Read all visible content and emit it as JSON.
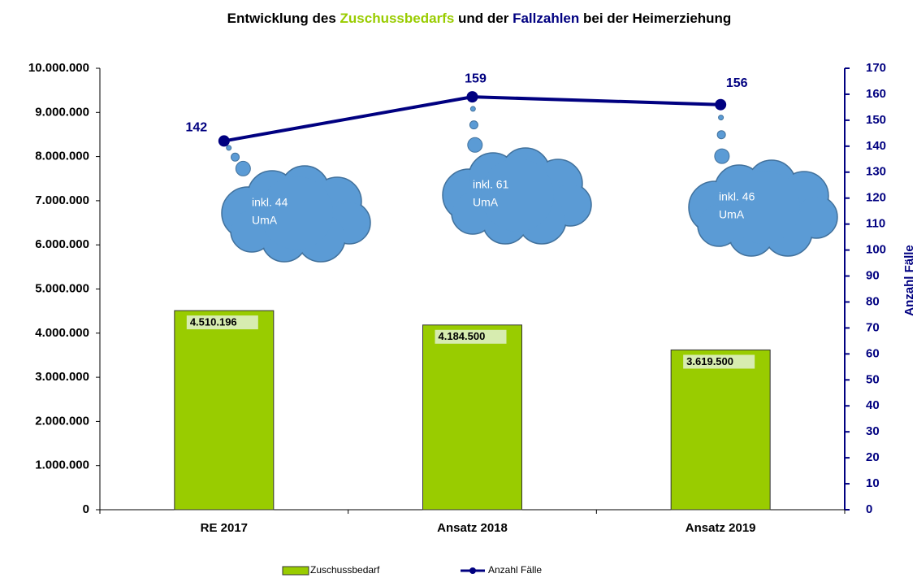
{
  "chart_data": {
    "type": "bar-line",
    "title": [
      {
        "text": "Entwicklung des ",
        "color": "#000000"
      },
      {
        "text": "Zuschussbedarfs",
        "color": "#99cc00"
      },
      {
        "text": " und der ",
        "color": "#000000"
      },
      {
        "text": "Fallzahlen",
        "color": "#000080"
      },
      {
        "text": " bei der Heimerziehung",
        "color": "#000000"
      }
    ],
    "categories": [
      "RE 2017",
      "Ansatz 2018",
      "Ansatz 2019"
    ],
    "series": [
      {
        "name": "Zuschussbedarf",
        "type": "bar",
        "color": "#99cc00",
        "values": [
          4510196,
          4184500,
          3619500
        ],
        "value_labels": [
          "4.510.196",
          "4.184.500",
          "3.619.500"
        ]
      },
      {
        "name": "Anzahl Fälle",
        "type": "line",
        "axis": "y2",
        "color": "#000080",
        "values": [
          142,
          159,
          156
        ]
      }
    ],
    "ylim": [
      0,
      10000000
    ],
    "yticks": [
      0,
      {
        "value": 1000000,
        "label": "1.000.000"
      },
      {
        "value": 2000000,
        "label": "2.000.000"
      },
      {
        "value": 3000000,
        "label": "3.000.000"
      },
      {
        "value": 4000000,
        "label": "4.000.000"
      },
      {
        "value": 5000000,
        "label": "5.000.000"
      },
      {
        "value": 6000000,
        "label": "6.000.000"
      },
      {
        "value": 7000000,
        "label": "7.000.000"
      },
      {
        "value": 8000000,
        "label": "8.000.000"
      },
      {
        "value": 9000000,
        "label": "9.000.000"
      },
      {
        "value": 10000000,
        "label": "10.000.000"
      }
    ],
    "y2lim": [
      0,
      170
    ],
    "y2ticks": [
      0,
      10,
      20,
      30,
      40,
      50,
      60,
      70,
      80,
      90,
      100,
      110,
      120,
      130,
      140,
      150,
      160,
      170
    ],
    "y2label": "Anzahl Fälle",
    "annotations": [
      [
        "inkl. 44",
        "UmA"
      ],
      [
        "inkl. 61",
        "UmA"
      ],
      [
        "inkl. 46",
        "UmA"
      ]
    ],
    "annotation_color": "#5b9bd5",
    "legend": "bottom"
  }
}
